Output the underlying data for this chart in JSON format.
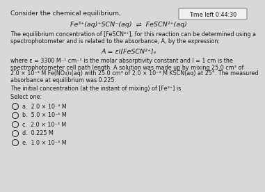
{
  "bg_color": "#d8d8d8",
  "text_color": "#1a1a1a",
  "timer_box_bg": "#f0f0f0",
  "timer_box_edge": "#888888",
  "title": "Consider the chemical equilibrium,",
  "timer": "Time left 0:44:30",
  "para1_line1": "The equilibrium concentration of [FeSCN²⁺], for this reaction can be determined using a",
  "para1_line2": "spectrophotometer and is related to the absorbance, A, by the expression:",
  "formula": "A = εl[FeSCN²⁺]ₑ",
  "para2_line1": "where ε = 3300 M⁻¹ cm⁻¹ is the molar absorptivity constant and l = 1 cm is the",
  "para2_line2": "spectrophotometer cell path length. A solution was made up by mixing 25.0 cm³ of",
  "para2_line3": "2.0 × 10⁻³ M Fe(NO₃)₃(aq) with 25.0 cm³ of 2.0 × 10⁻³ M KSCN(aq) at 25°. The measured",
  "para2_line4": "absorbance at equilibrium was 0.225.",
  "question": "The initial concentration (at the instant of mixing) of [Fe³⁺] is",
  "select": "Select one:",
  "opt_a": "a.  2.0 × 10⁻³ M",
  "opt_b": "b.  5.0 × 10⁻⁵ M",
  "opt_c": "c.  2.0 × 10⁻³ M",
  "opt_d": "d.  0.225 M",
  "opt_e": "e.  1.0 × 10⁻³ M",
  "eq_line": "Fe³⁺(aq)⁺SCN⁻(aq)  ⇌  FeSCN²⁺(aq)",
  "fs_title": 6.5,
  "fs_body": 5.8,
  "fs_eq": 6.8,
  "fs_formula": 6.8,
  "fs_timer": 5.8,
  "fs_opt": 5.8
}
